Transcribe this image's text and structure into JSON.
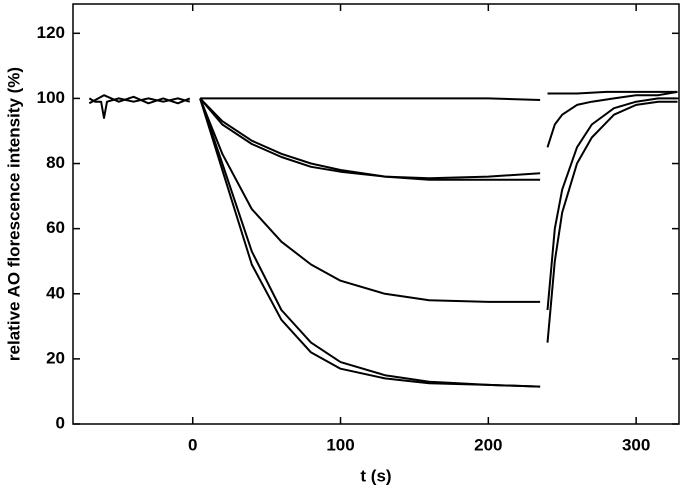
{
  "chart_data": {
    "type": "line",
    "xlabel": "t  (s)",
    "ylabel": "relative AO florescence intensity  (%)",
    "color": "#000000",
    "xlim": [
      -81,
      329
    ],
    "xticks": [
      0,
      100,
      200,
      300
    ],
    "ylim": [
      0,
      129
    ],
    "yticks": [
      0,
      20,
      40,
      60,
      80,
      100,
      120
    ],
    "series": [
      {
        "x": [
          -70,
          -66,
          -62,
          -60,
          -58,
          -50,
          -40,
          -30,
          -20,
          -10,
          -2
        ],
        "values": [
          100,
          99,
          99,
          94,
          99,
          100,
          99,
          100,
          99,
          100,
          99
        ]
      },
      {
        "x": [
          -70,
          -60,
          -50,
          -40,
          -30,
          -20,
          -10,
          -2
        ],
        "values": [
          98.5,
          101,
          99,
          100.5,
          98.5,
          100,
          98.5,
          100
        ]
      },
      {
        "x": [
          5,
          40,
          80,
          120,
          160,
          200,
          235
        ],
        "values": [
          100,
          100,
          100,
          100,
          100,
          100,
          99.5
        ]
      },
      {
        "x": [
          5,
          20,
          40,
          60,
          80,
          100,
          130,
          160,
          200,
          235
        ],
        "values": [
          100,
          92,
          86,
          82,
          79,
          77.5,
          76,
          75.5,
          76,
          77
        ]
      },
      {
        "x": [
          5,
          20,
          40,
          60,
          80,
          100,
          130,
          160,
          200,
          235
        ],
        "values": [
          100,
          93,
          87,
          83,
          80,
          78,
          76,
          75,
          75,
          75
        ]
      },
      {
        "x": [
          5,
          20,
          40,
          60,
          80,
          100,
          130,
          160,
          200,
          235
        ],
        "values": [
          100,
          83,
          66,
          56,
          49,
          44,
          40,
          38,
          37.5,
          37.5
        ]
      },
      {
        "x": [
          5,
          20,
          40,
          60,
          80,
          100,
          130,
          160,
          200,
          235
        ],
        "values": [
          100,
          78,
          49,
          32,
          22,
          17,
          14,
          12.5,
          12,
          11.5
        ]
      },
      {
        "x": [
          5,
          20,
          40,
          60,
          80,
          100,
          130,
          160,
          200,
          235
        ],
        "values": [
          100,
          80,
          53,
          35,
          25,
          19,
          15,
          13,
          12,
          11.5
        ]
      },
      {
        "x": [
          240,
          245,
          250,
          260,
          270,
          285,
          300,
          315,
          328
        ],
        "values": [
          25,
          50,
          65,
          80,
          88,
          95,
          98,
          99,
          99
        ]
      },
      {
        "x": [
          240,
          245,
          250,
          260,
          270,
          285,
          300,
          315,
          328
        ],
        "values": [
          35,
          60,
          72,
          85,
          92,
          97,
          99,
          100,
          100
        ]
      },
      {
        "x": [
          240,
          245,
          250,
          260,
          270,
          285,
          300,
          315,
          328
        ],
        "values": [
          85,
          92,
          95,
          98,
          99,
          100,
          101,
          101,
          102
        ]
      },
      {
        "x": [
          240,
          260,
          280,
          300,
          328
        ],
        "values": [
          101.5,
          101.5,
          102,
          102,
          102
        ]
      }
    ]
  }
}
